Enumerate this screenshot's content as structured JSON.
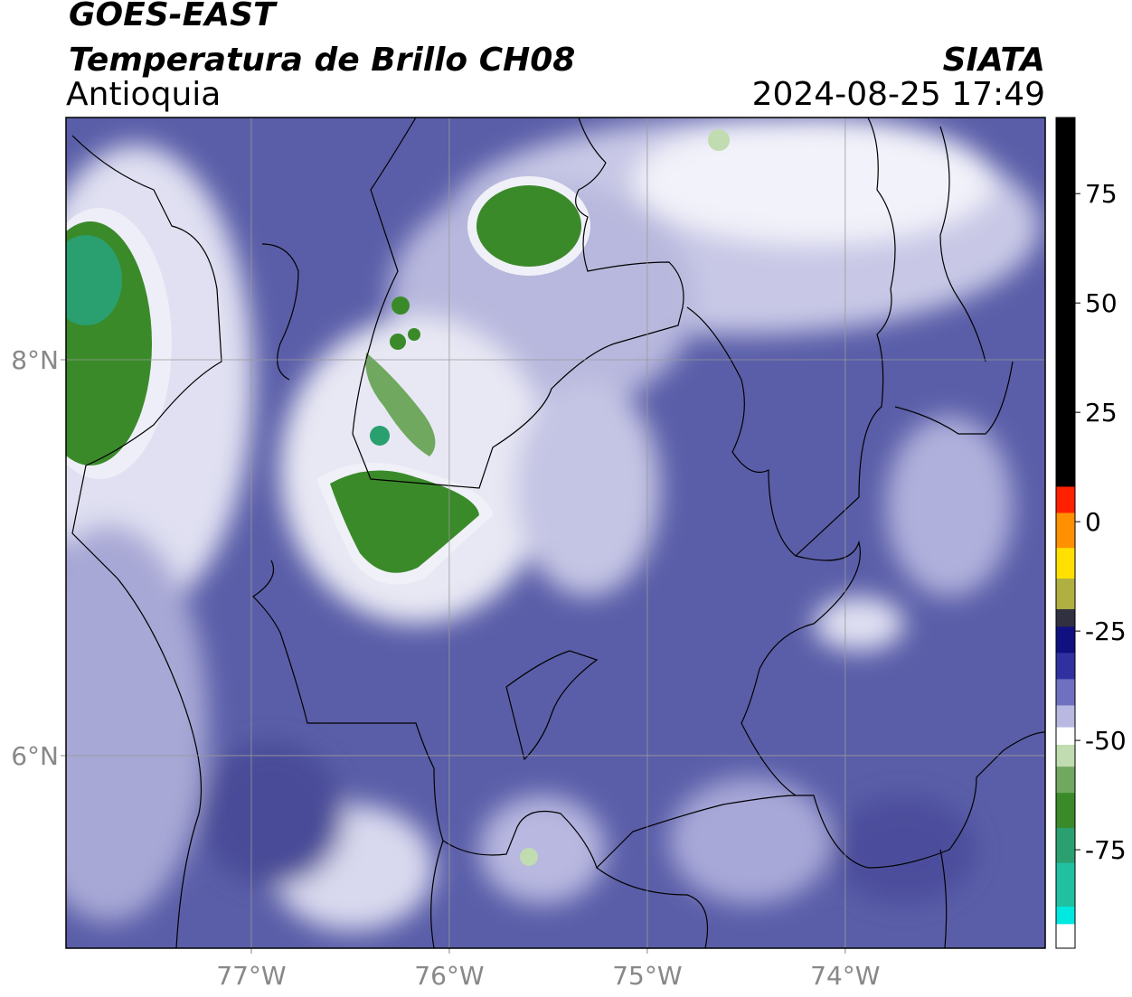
{
  "chart_data": {
    "type": "map",
    "title": "GOES-EAST",
    "subtitle": "Temperatura de Brillo CH08",
    "region": "Antioquia",
    "source": "SIATA",
    "datetime": "2024-08-25 17:49",
    "xlim": [
      -77.936,
      -72.99
    ],
    "ylim": [
      5.027,
      9.224
    ],
    "xticks": [
      {
        "value": -77,
        "label": "77°W"
      },
      {
        "value": -76,
        "label": "76°W"
      },
      {
        "value": -75,
        "label": "75°W"
      },
      {
        "value": -74,
        "label": "74°W"
      }
    ],
    "yticks": [
      {
        "value": 8,
        "label": "8°N"
      },
      {
        "value": 6,
        "label": "6°N"
      }
    ],
    "grid": true,
    "colorbar": {
      "lim": [
        -97.5,
        92.4
      ],
      "ticks": [
        75,
        50,
        25,
        0,
        -25,
        -50,
        -75
      ],
      "bands": [
        {
          "min": 8,
          "max": 92.4,
          "color": "#000000"
        },
        {
          "min": 2,
          "max": 8,
          "color": "#ff2000"
        },
        {
          "min": -6,
          "max": 2,
          "color": "#ff9000"
        },
        {
          "min": -13,
          "max": -6,
          "color": "#ffe000"
        },
        {
          "min": -20,
          "max": -13,
          "color": "#b0b040"
        },
        {
          "min": -24,
          "max": -20,
          "color": "#303040"
        },
        {
          "min": -30,
          "max": -24,
          "color": "#101080"
        },
        {
          "min": -36,
          "max": -30,
          "color": "#3030a0"
        },
        {
          "min": -42,
          "max": -36,
          "color": "#7070c0"
        },
        {
          "min": -47,
          "max": -42,
          "color": "#b8b8e0"
        },
        {
          "min": -51,
          "max": -47,
          "color": "#ffffff"
        },
        {
          "min": -56,
          "max": -51,
          "color": "#c0dcb0"
        },
        {
          "min": -62,
          "max": -56,
          "color": "#70a860"
        },
        {
          "min": -70,
          "max": -62,
          "color": "#3a8a2a"
        },
        {
          "min": -78,
          "max": -70,
          "color": "#2aa070"
        },
        {
          "min": -88,
          "max": -78,
          "color": "#20c0a0"
        },
        {
          "min": -92,
          "max": -88,
          "color": "#00e8e0"
        },
        {
          "min": -97.5,
          "max": -92,
          "color": "#ffffff"
        }
      ]
    }
  }
}
